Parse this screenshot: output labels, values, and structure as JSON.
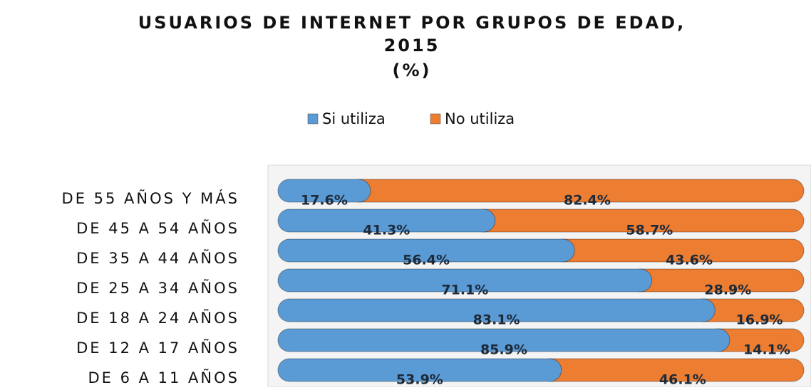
{
  "chart_data": {
    "type": "stacked-bar-horizontal",
    "title": [
      "USUARIOS DE INTERNET POR GRUPOS DE EDAD,",
      "2015"
    ],
    "subtitle": "(%)",
    "categories": [
      "DE 55 AÑOS Y MÁS",
      "DE 45 A 54 AÑOS",
      "DE 35 A 44 AÑOS",
      "DE 25 A 34 AÑOS",
      "DE 18 A 24 AÑOS",
      "DE 12 A 17 AÑOS",
      "DE 6 A 11 AÑOS"
    ],
    "series": [
      {
        "name": "Si utiliza",
        "color": "#5b9bd5",
        "values": [
          17.6,
          41.3,
          56.4,
          71.1,
          83.1,
          85.9,
          53.9
        ],
        "value_labels": [
          "17.6%",
          "41.3%",
          "56.4%",
          "71.1%",
          "83.1%",
          "85.9%",
          "53.9%"
        ]
      },
      {
        "name": "No utiliza",
        "color": "#ed7d31",
        "values": [
          82.4,
          58.7,
          43.6,
          28.9,
          16.9,
          14.1,
          46.1
        ],
        "value_labels": [
          "82.4%",
          "58.7%",
          "43.6%",
          "28.9%",
          "16.9%",
          "14.1%",
          "46.1%"
        ]
      }
    ],
    "xlim": [
      0,
      100
    ],
    "legend": "top"
  }
}
